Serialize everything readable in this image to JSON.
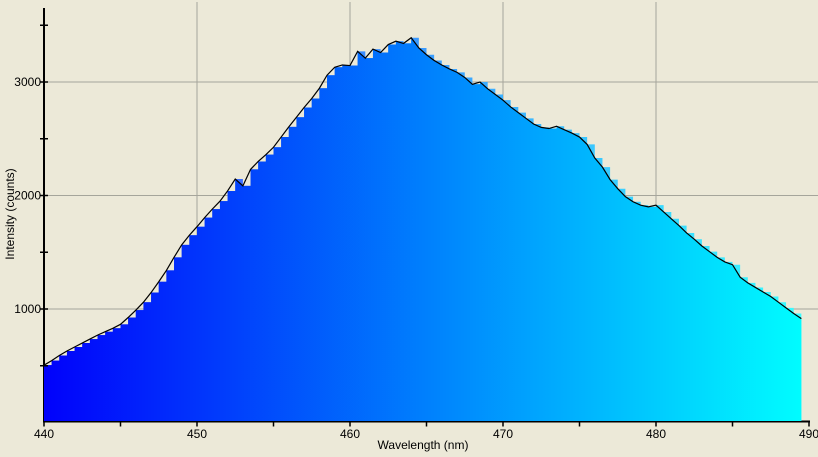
{
  "window": {
    "background_color": "#ece9d8"
  },
  "chart_data": {
    "type": "area",
    "title": "",
    "xlabel": "Wavelength (nm)",
    "ylabel": "Intensity (counts)",
    "xlim": [
      440,
      490
    ],
    "ylim": [
      0,
      3652
    ],
    "x_major_ticks": [
      440,
      450,
      460,
      470,
      480,
      490
    ],
    "x_minor_ticks": [
      445,
      455,
      465,
      475,
      485
    ],
    "y_major_ticks": [
      1000,
      2000,
      3000
    ],
    "y_minor_ticks": [
      500,
      1500,
      2500,
      3500
    ],
    "grid": {
      "x_lines": [
        450,
        460,
        470,
        480
      ],
      "y_lines": [
        1000,
        2000,
        3000
      ],
      "color": "#a5a59b",
      "on": true
    },
    "legend": "none",
    "colors": {
      "background": "#ece9d8",
      "fill_gradient_left": "#0101fb",
      "fill_gradient_right": "#00ffff",
      "stair_gradient_left": "#3a3aff",
      "stair_gradient_right": "#3affff",
      "trace_line": "#000000",
      "axis": "#000000"
    },
    "x": [
      440.0,
      440.5,
      441.0,
      441.5,
      442.0,
      442.5,
      443.0,
      443.5,
      444.0,
      444.5,
      445.0,
      445.5,
      446.0,
      446.5,
      447.0,
      447.5,
      448.0,
      448.5,
      449.0,
      449.5,
      450.0,
      450.5,
      451.0,
      451.5,
      452.0,
      452.5,
      453.0,
      453.5,
      454.0,
      454.5,
      455.0,
      455.5,
      456.0,
      456.5,
      457.0,
      457.5,
      458.0,
      458.5,
      459.0,
      459.5,
      460.0,
      460.5,
      461.0,
      461.5,
      462.0,
      462.5,
      463.0,
      463.5,
      464.0,
      464.5,
      465.0,
      465.5,
      466.0,
      466.5,
      467.0,
      467.5,
      468.0,
      468.5,
      469.0,
      469.5,
      470.0,
      470.5,
      471.0,
      471.5,
      472.0,
      472.5,
      473.0,
      473.5,
      474.0,
      474.5,
      475.0,
      475.5,
      476.0,
      476.5,
      477.0,
      477.5,
      478.0,
      478.5,
      479.0,
      479.5,
      480.0,
      480.5,
      481.0,
      481.5,
      482.0,
      482.5,
      483.0,
      483.5,
      484.0,
      484.5,
      485.0,
      485.5,
      486.0,
      486.5,
      487.0,
      487.5,
      488.0,
      488.5,
      489.0,
      489.5
    ],
    "series": [
      {
        "name": "intensity",
        "values": [
          505,
          545,
          590,
          630,
          665,
          700,
          735,
          770,
          800,
          830,
          865,
          925,
          990,
          1060,
          1145,
          1240,
          1340,
          1455,
          1565,
          1650,
          1725,
          1805,
          1880,
          1950,
          2040,
          2145,
          2085,
          2230,
          2300,
          2360,
          2425,
          2515,
          2605,
          2690,
          2775,
          2855,
          2945,
          3060,
          3130,
          3150,
          3145,
          3270,
          3210,
          3290,
          3260,
          3330,
          3360,
          3340,
          3390,
          3300,
          3240,
          3190,
          3150,
          3115,
          3085,
          3040,
          2980,
          3000,
          2940,
          2890,
          2840,
          2780,
          2730,
          2680,
          2630,
          2600,
          2590,
          2610,
          2580,
          2550,
          2515,
          2450,
          2330,
          2250,
          2140,
          2060,
          1990,
          1945,
          1915,
          1900,
          1915,
          1855,
          1795,
          1735,
          1670,
          1615,
          1555,
          1505,
          1455,
          1415,
          1390,
          1280,
          1230,
          1190,
          1150,
          1110,
          1060,
          1010,
          960,
          915
        ]
      }
    ]
  }
}
